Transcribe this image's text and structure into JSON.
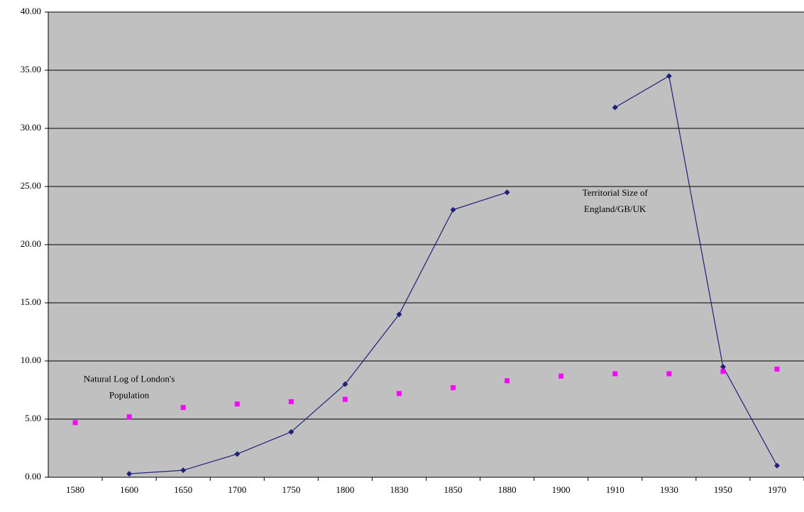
{
  "chart_data": {
    "type": "line",
    "categories": [
      "1580",
      "1600",
      "1650",
      "1700",
      "1750",
      "1800",
      "1830",
      "1850",
      "1880",
      "1900",
      "1910",
      "1930",
      "1950",
      "1970"
    ],
    "series": [
      {
        "color": "#1f1f7a",
        "line": true,
        "marker": "diamond",
        "values": [
          null,
          0.3,
          0.6,
          2.0,
          3.9,
          8.0,
          14.0,
          23.0,
          24.5,
          null,
          31.8,
          34.5,
          9.5,
          1.0
        ]
      },
      {
        "color": "#ff00ff",
        "line": false,
        "marker": "square",
        "values": [
          4.7,
          5.2,
          6.0,
          6.3,
          6.5,
          6.7,
          7.2,
          7.7,
          8.3,
          8.7,
          8.9,
          8.9,
          9.1,
          9.3
        ]
      }
    ],
    "ylim": [
      0,
      40
    ],
    "yticks": [
      {
        "value": 0,
        "label": "0.00"
      },
      {
        "value": 5,
        "label": "5.00"
      },
      {
        "value": 10,
        "label": "10.00"
      },
      {
        "value": 15,
        "label": "15.00"
      },
      {
        "value": 20,
        "label": "20.00"
      },
      {
        "value": 25,
        "label": "25.00"
      },
      {
        "value": 30,
        "label": "30.00"
      },
      {
        "value": 35,
        "label": "35.00"
      },
      {
        "value": 40,
        "label": "40.00"
      }
    ],
    "grid": true,
    "annotations": [
      {
        "lines": [
          "Territorial Size of",
          "England/GB/UK"
        ],
        "category": 10,
        "y": 25
      },
      {
        "lines": [
          "Natural Log of London's",
          "Population"
        ],
        "category": 1,
        "y": 9
      }
    ]
  }
}
